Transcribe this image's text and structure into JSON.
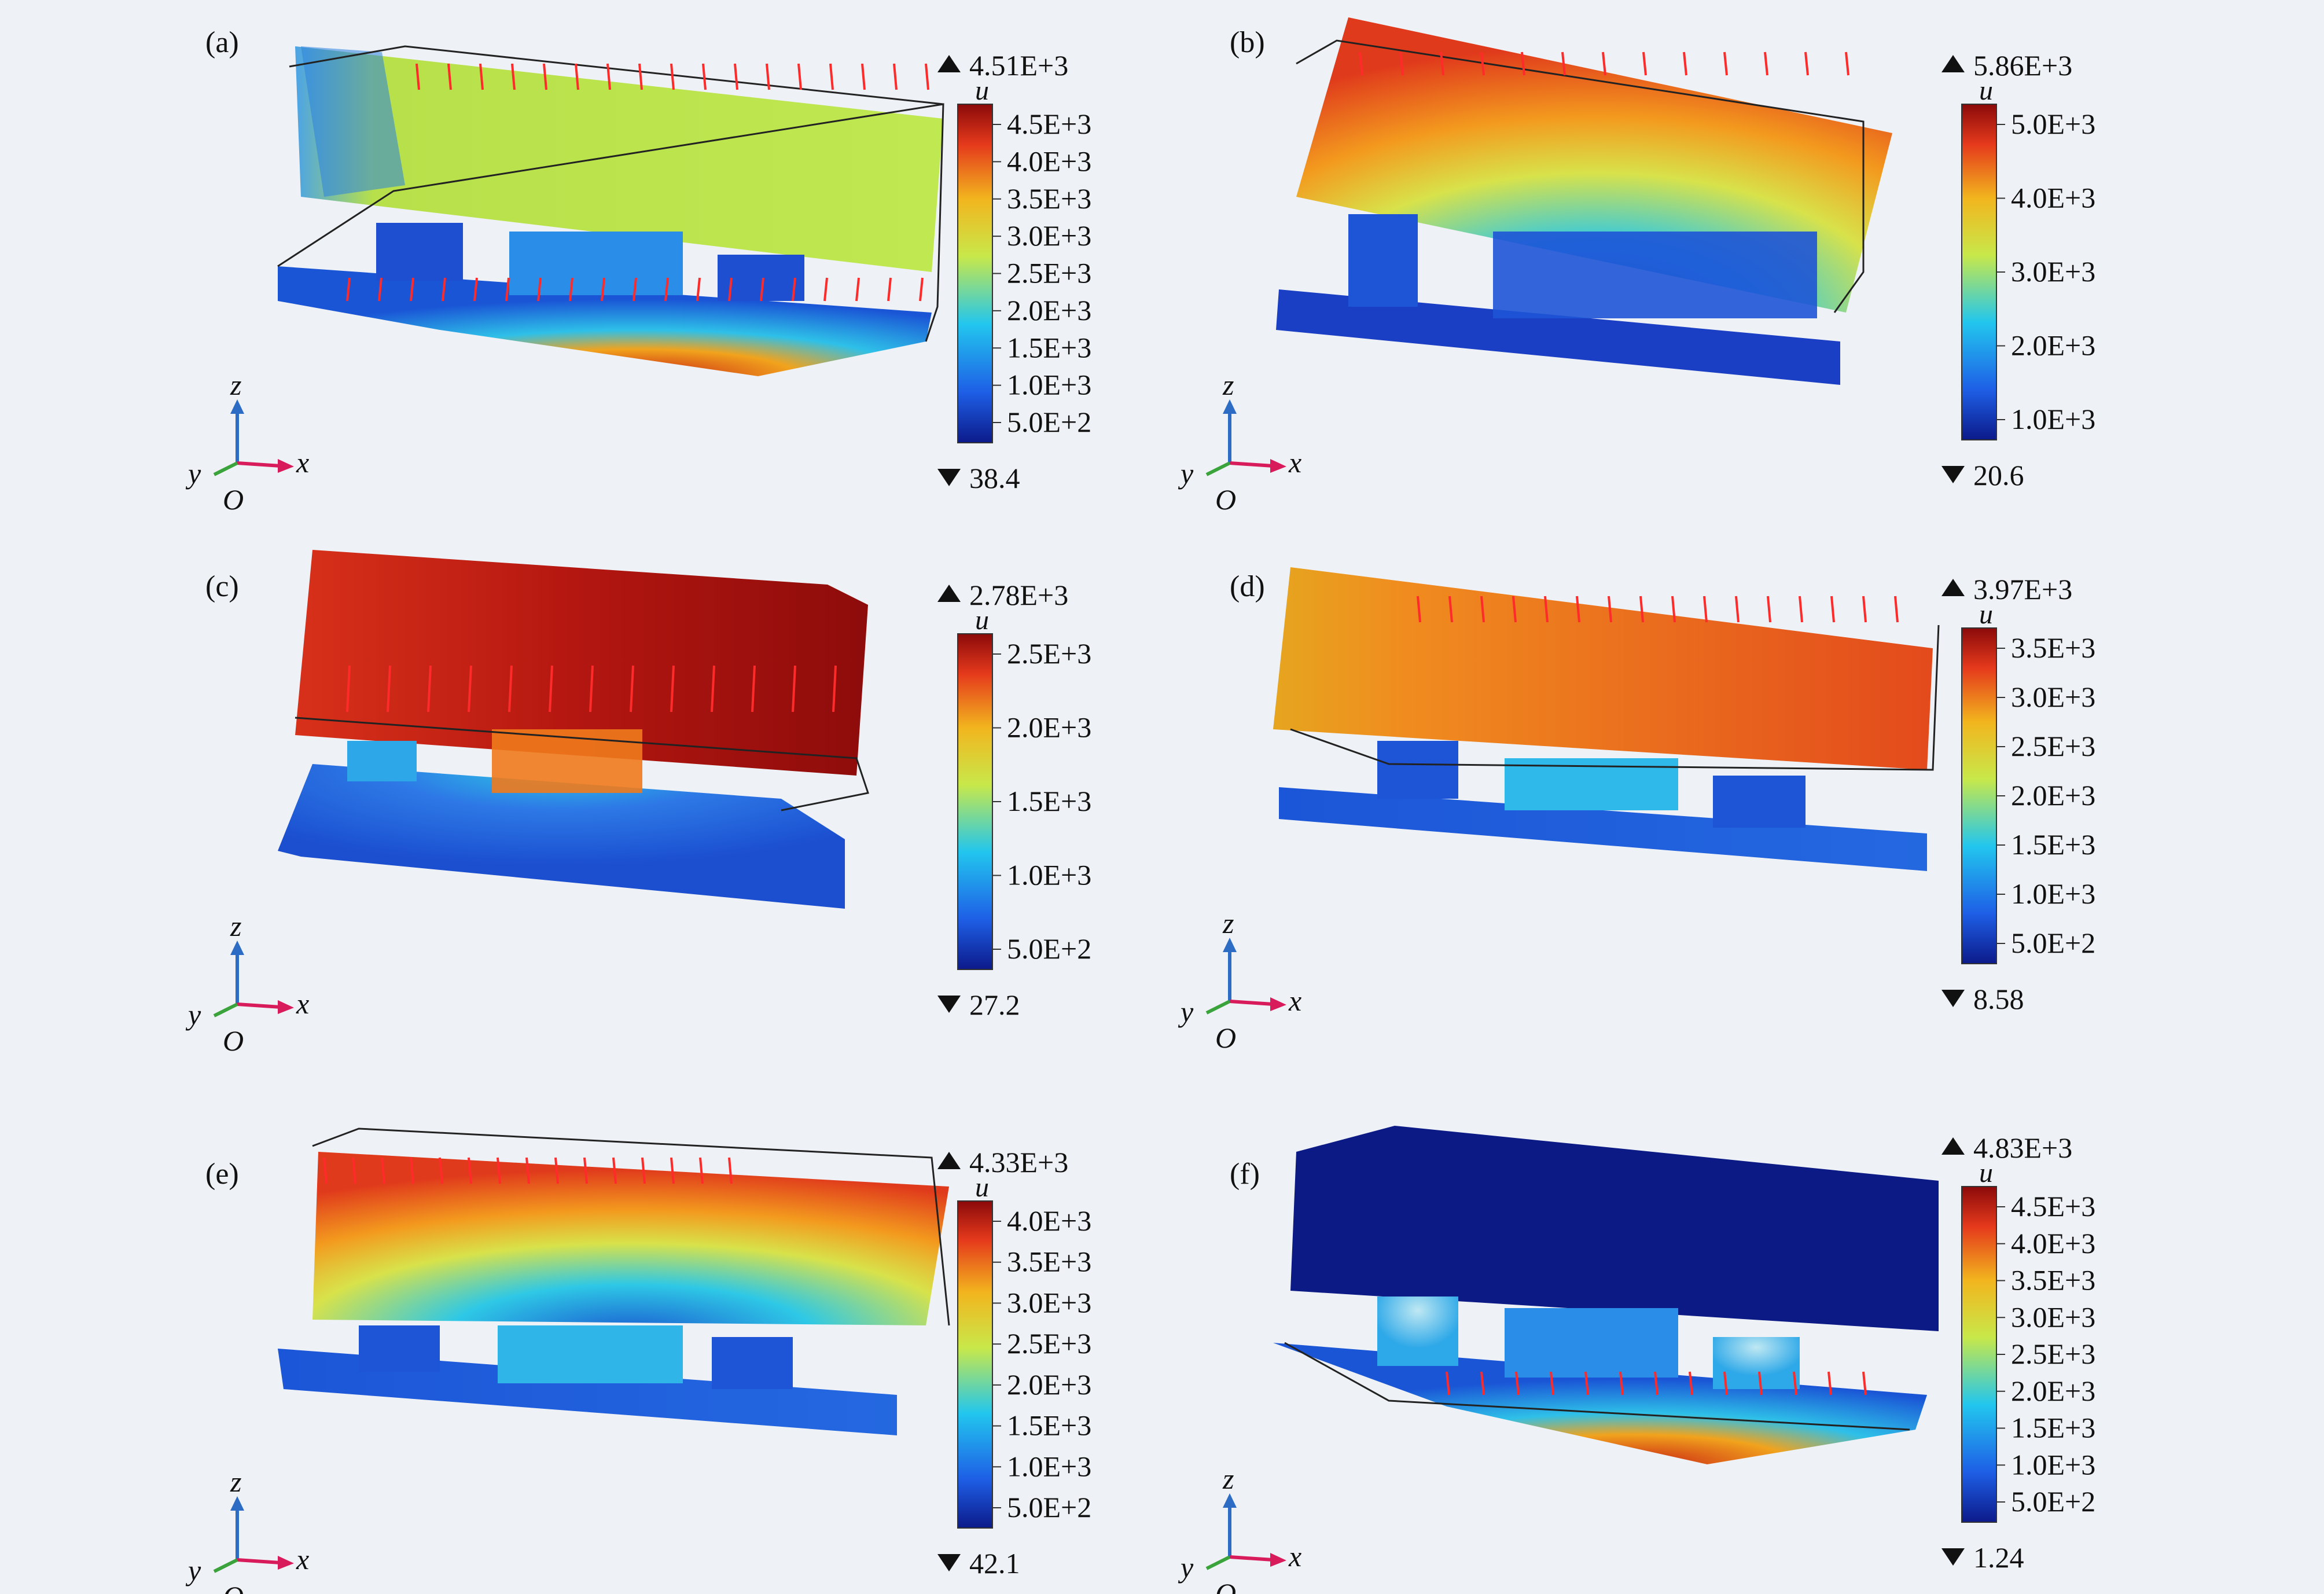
{
  "panels": [
    {
      "id": "a",
      "label": "(a)",
      "max": "4.51E+3",
      "min": "38.4",
      "var": "u",
      "ticks": [
        "4.5E+3",
        "4.0E+3",
        "3.5E+3",
        "3.0E+3",
        "2.5E+3",
        "2.0E+3",
        "1.5E+3",
        "1.0E+3",
        "5.0E+2"
      ]
    },
    {
      "id": "b",
      "label": "(b)",
      "max": "5.86E+3",
      "min": "20.6",
      "var": "u",
      "ticks": [
        "5.0E+3",
        "4.0E+3",
        "3.0E+3",
        "2.0E+3",
        "1.0E+3"
      ]
    },
    {
      "id": "c",
      "label": "(c)",
      "max": "2.78E+3",
      "min": "27.2",
      "var": "u",
      "ticks": [
        "2.5E+3",
        "2.0E+3",
        "1.5E+3",
        "1.0E+3",
        "5.0E+2"
      ]
    },
    {
      "id": "d",
      "label": "(d)",
      "max": "3.97E+3",
      "min": "8.58",
      "var": "u",
      "ticks": [
        "3.5E+3",
        "3.0E+3",
        "2.5E+3",
        "2.0E+3",
        "1.5E+3",
        "1.0E+3",
        "5.0E+2"
      ]
    },
    {
      "id": "e",
      "label": "(e)",
      "max": "4.33E+3",
      "min": "42.1",
      "var": "u",
      "ticks": [
        "4.0E+3",
        "3.5E+3",
        "3.0E+3",
        "2.5E+3",
        "2.0E+3",
        "1.5E+3",
        "1.0E+3",
        "5.0E+2"
      ]
    },
    {
      "id": "f",
      "label": "(f)",
      "max": "4.83E+3",
      "min": "1.24",
      "var": "u",
      "ticks": [
        "4.5E+3",
        "4.0E+3",
        "3.5E+3",
        "3.0E+3",
        "2.5E+3",
        "2.0E+3",
        "1.5E+3",
        "1.0E+3",
        "5.0E+2"
      ]
    }
  ],
  "axes": {
    "z": "z",
    "y": "y",
    "x": "x",
    "origin": "O"
  },
  "colors": {
    "colormap": [
      "#0c1a8a",
      "#1e5fe6",
      "#22c6ee",
      "#c8e84a",
      "#f2b51e",
      "#e53a1c",
      "#8b0a0a"
    ],
    "arrow": "#ff2a2a",
    "axis_x": "#d81b5a",
    "axis_y": "#3ba33b",
    "axis_z": "#2d6cc4"
  }
}
